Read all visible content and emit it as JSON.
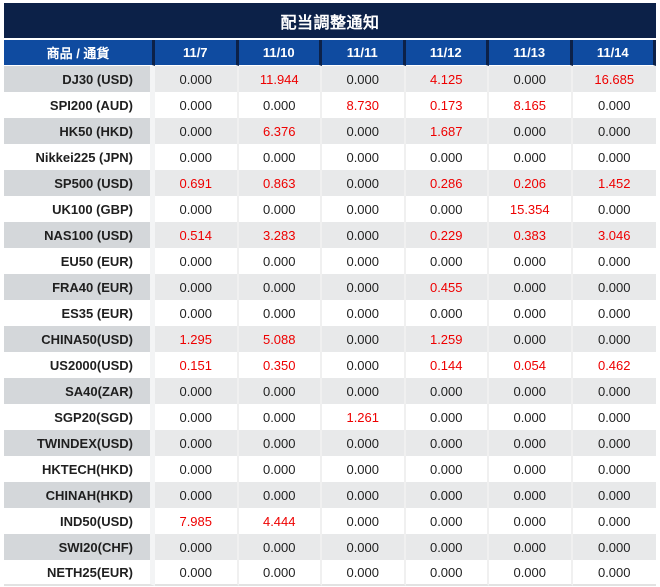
{
  "title": "配当調整通知",
  "colors": {
    "title_bar_bg": "#0c2148",
    "header_bg": "#0f4ba0",
    "header_divider": "#0c2148",
    "gray_row_label_bg": "#d4d7da",
    "gray_row_value_bg": "#e8e9ea",
    "zero_value_text": "#1f1f1f",
    "nonzero_value_text": "#ee0000"
  },
  "chart_data": {
    "type": "table",
    "title": "配当調整通知",
    "columns": [
      "商品 / 通貨",
      "11/7",
      "11/10",
      "11/11",
      "11/12",
      "11/13",
      "11/14"
    ],
    "rows": [
      {
        "name": "DJ30 (USD)",
        "values": [
          "0.000",
          "11.944",
          "0.000",
          "4.125",
          "0.000",
          "16.685"
        ]
      },
      {
        "name": "SPI200 (AUD)",
        "values": [
          "0.000",
          "0.000",
          "8.730",
          "0.173",
          "8.165",
          "0.000"
        ]
      },
      {
        "name": "HK50 (HKD)",
        "values": [
          "0.000",
          "6.376",
          "0.000",
          "1.687",
          "0.000",
          "0.000"
        ]
      },
      {
        "name": "Nikkei225 (JPN)",
        "values": [
          "0.000",
          "0.000",
          "0.000",
          "0.000",
          "0.000",
          "0.000"
        ]
      },
      {
        "name": "SP500 (USD)",
        "values": [
          "0.691",
          "0.863",
          "0.000",
          "0.286",
          "0.206",
          "1.452"
        ]
      },
      {
        "name": "UK100 (GBP)",
        "values": [
          "0.000",
          "0.000",
          "0.000",
          "0.000",
          "15.354",
          "0.000"
        ]
      },
      {
        "name": "NAS100 (USD)",
        "values": [
          "0.514",
          "3.283",
          "0.000",
          "0.229",
          "0.383",
          "3.046"
        ]
      },
      {
        "name": "EU50 (EUR)",
        "values": [
          "0.000",
          "0.000",
          "0.000",
          "0.000",
          "0.000",
          "0.000"
        ]
      },
      {
        "name": "FRA40 (EUR)",
        "values": [
          "0.000",
          "0.000",
          "0.000",
          "0.455",
          "0.000",
          "0.000"
        ]
      },
      {
        "name": "ES35 (EUR)",
        "values": [
          "0.000",
          "0.000",
          "0.000",
          "0.000",
          "0.000",
          "0.000"
        ]
      },
      {
        "name": "CHINA50(USD)",
        "values": [
          "1.295",
          "5.088",
          "0.000",
          "1.259",
          "0.000",
          "0.000"
        ]
      },
      {
        "name": "US2000(USD)",
        "values": [
          "0.151",
          "0.350",
          "0.000",
          "0.144",
          "0.054",
          "0.462"
        ]
      },
      {
        "name": "SA40(ZAR)",
        "values": [
          "0.000",
          "0.000",
          "0.000",
          "0.000",
          "0.000",
          "0.000"
        ]
      },
      {
        "name": "SGP20(SGD)",
        "values": [
          "0.000",
          "0.000",
          "1.261",
          "0.000",
          "0.000",
          "0.000"
        ]
      },
      {
        "name": "TWINDEX(USD)",
        "values": [
          "0.000",
          "0.000",
          "0.000",
          "0.000",
          "0.000",
          "0.000"
        ]
      },
      {
        "name": "HKTECH(HKD)",
        "values": [
          "0.000",
          "0.000",
          "0.000",
          "0.000",
          "0.000",
          "0.000"
        ]
      },
      {
        "name": "CHINAH(HKD)",
        "values": [
          "0.000",
          "0.000",
          "0.000",
          "0.000",
          "0.000",
          "0.000"
        ]
      },
      {
        "name": "IND50(USD)",
        "values": [
          "7.985",
          "4.444",
          "0.000",
          "0.000",
          "0.000",
          "0.000"
        ]
      },
      {
        "name": "SWI20(CHF)",
        "values": [
          "0.000",
          "0.000",
          "0.000",
          "0.000",
          "0.000",
          "0.000"
        ]
      },
      {
        "name": "NETH25(EUR)",
        "values": [
          "0.000",
          "0.000",
          "0.000",
          "0.000",
          "0.000",
          "0.000"
        ]
      }
    ]
  }
}
